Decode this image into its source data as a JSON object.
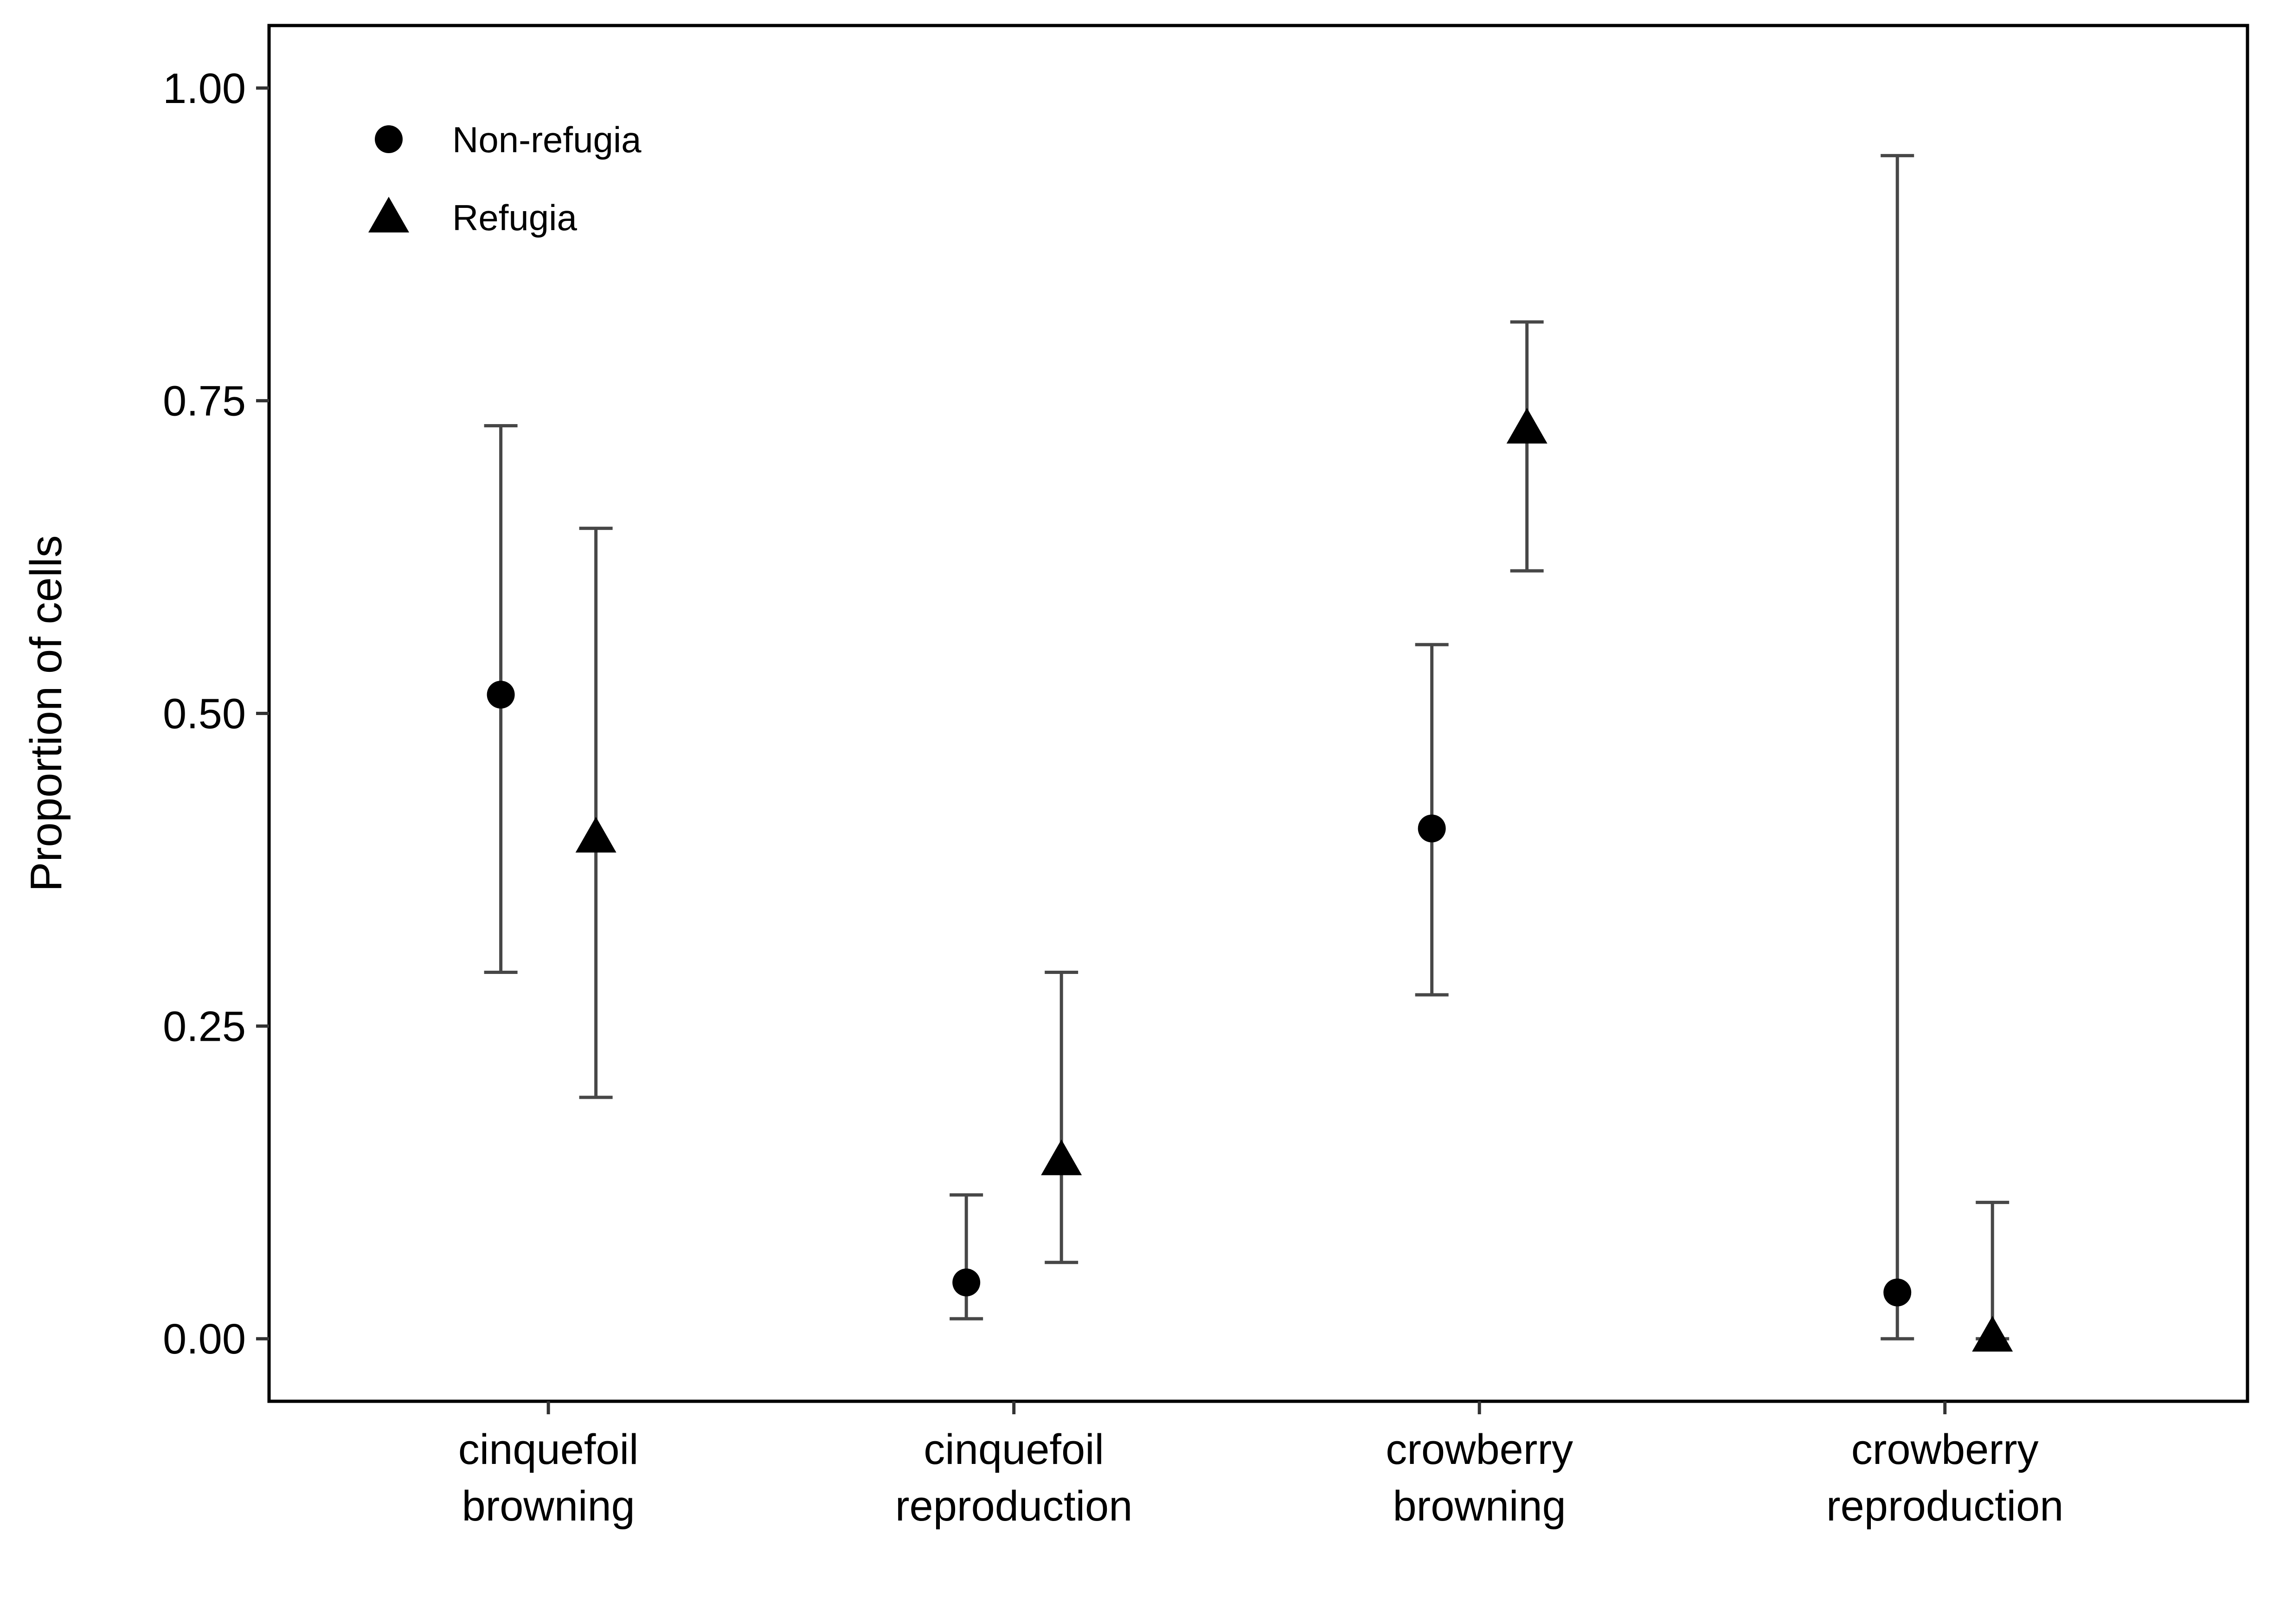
{
  "chart_data": {
    "type": "scatter",
    "ylabel": "Proportion of cells",
    "xlabel": "",
    "ylim": [
      -0.05,
      1.05
    ],
    "yticks": [
      0.0,
      0.25,
      0.5,
      0.75,
      1.0
    ],
    "ytick_labels": [
      "0.00",
      "0.25",
      "0.50",
      "0.75",
      "1.00"
    ],
    "categories": [
      [
        "cinquefoil",
        "browning"
      ],
      [
        "cinquefoil",
        "reproduction"
      ],
      [
        "crowberry",
        "browning"
      ],
      [
        "crowberry",
        "reproduction"
      ]
    ],
    "grid": false,
    "legend_position": "top-left",
    "error_bar_color": "#474747",
    "marker_color": "#000000",
    "series": [
      {
        "name": "Non-refugia",
        "marker": "circle",
        "values": [
          0.515,
          0.045,
          0.408,
          0.037
        ],
        "lower": [
          0.293,
          0.016,
          0.275,
          0.0
        ],
        "upper": [
          0.73,
          0.115,
          0.555,
          0.946
        ]
      },
      {
        "name": "Refugia",
        "marker": "triangle",
        "values": [
          0.401,
          0.143,
          0.728,
          0.002
        ],
        "lower": [
          0.193,
          0.061,
          0.614,
          0.0
        ],
        "upper": [
          0.648,
          0.293,
          0.813,
          0.109
        ]
      }
    ]
  }
}
